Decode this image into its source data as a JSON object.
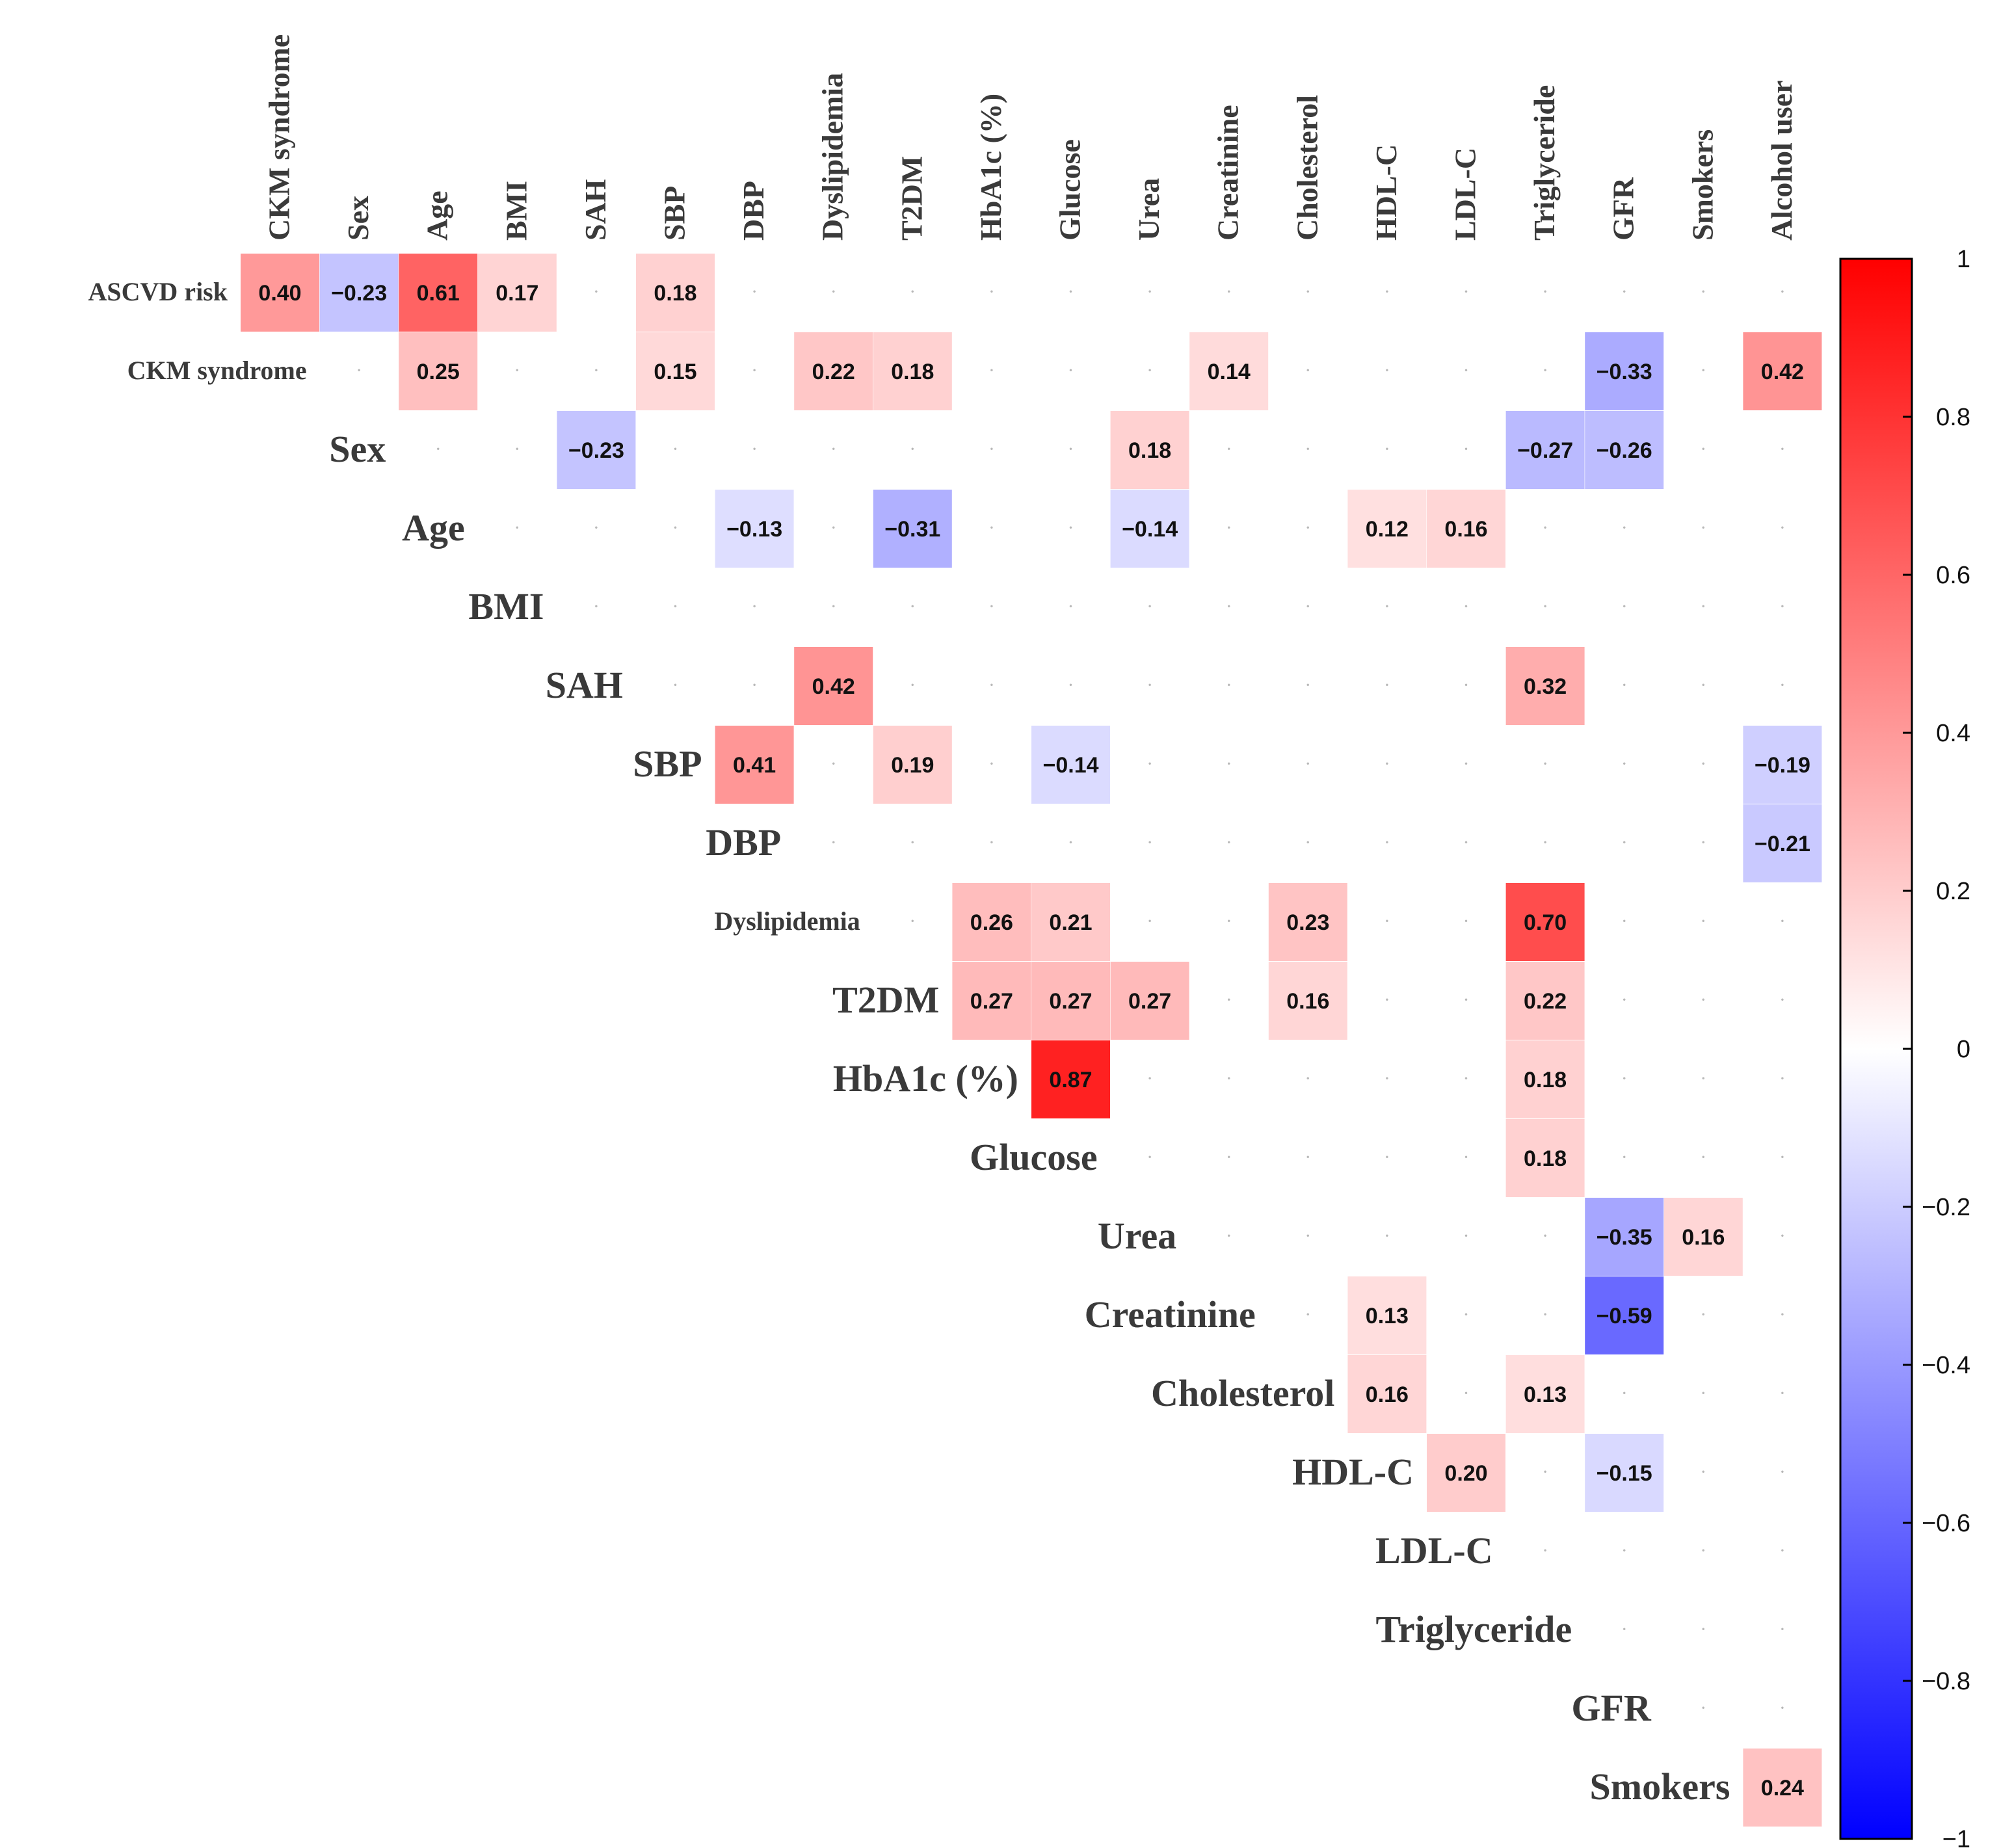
{
  "chart_data": {
    "type": "heatmap",
    "title": "",
    "columns": [
      "CKM syndrome",
      "Sex",
      "Age",
      "BMI",
      "SAH",
      "SBP",
      "DBP",
      "Dyslipidemia",
      "T2DM",
      "HbA1c (%)",
      "Glucose",
      "Urea",
      "Creatinine",
      "Cholesterol",
      "HDL-C",
      "LDL-C",
      "Triglyceride",
      "GFR",
      "Smokers",
      "Alcohol user"
    ],
    "rows": [
      "ASCVD risk",
      "CKM syndrome",
      "Sex",
      "Age",
      "BMI",
      "SAH",
      "SBP",
      "DBP",
      "Dyslipidemia",
      "T2DM",
      "HbA1c (%)",
      "Glucose",
      "Urea",
      "Creatinine",
      "Cholesterol",
      "HDL-C",
      "LDL-C",
      "Triglyceride",
      "GFR",
      "Smokers"
    ],
    "layout": "upper-triangle",
    "nonsignificant_marker": "·",
    "cells": [
      {
        "row": 0,
        "col": 0,
        "value": 0.4,
        "label": "0.40"
      },
      {
        "row": 0,
        "col": 1,
        "value": -0.23,
        "label": "−0.23"
      },
      {
        "row": 0,
        "col": 2,
        "value": 0.61,
        "label": "0.61"
      },
      {
        "row": 0,
        "col": 3,
        "value": 0.17,
        "label": "0.17"
      },
      {
        "row": 0,
        "col": 5,
        "value": 0.18,
        "label": "0.18"
      },
      {
        "row": 1,
        "col": 2,
        "value": 0.25,
        "label": "0.25"
      },
      {
        "row": 1,
        "col": 5,
        "value": 0.15,
        "label": "0.15"
      },
      {
        "row": 1,
        "col": 7,
        "value": 0.22,
        "label": "0.22"
      },
      {
        "row": 1,
        "col": 8,
        "value": 0.18,
        "label": "0.18"
      },
      {
        "row": 1,
        "col": 12,
        "value": 0.14,
        "label": "0.14"
      },
      {
        "row": 1,
        "col": 17,
        "value": -0.33,
        "label": "−0.33"
      },
      {
        "row": 1,
        "col": 19,
        "value": 0.42,
        "label": "0.42"
      },
      {
        "row": 2,
        "col": 4,
        "value": -0.23,
        "label": "−0.23"
      },
      {
        "row": 2,
        "col": 11,
        "value": 0.18,
        "label": "0.18"
      },
      {
        "row": 2,
        "col": 16,
        "value": -0.27,
        "label": "−0.27"
      },
      {
        "row": 2,
        "col": 17,
        "value": -0.26,
        "label": "−0.26"
      },
      {
        "row": 3,
        "col": 6,
        "value": -0.13,
        "label": "−0.13"
      },
      {
        "row": 3,
        "col": 8,
        "value": -0.31,
        "label": "−0.31"
      },
      {
        "row": 3,
        "col": 11,
        "value": -0.14,
        "label": "−0.14"
      },
      {
        "row": 3,
        "col": 14,
        "value": 0.12,
        "label": "0.12"
      },
      {
        "row": 3,
        "col": 15,
        "value": 0.16,
        "label": "0.16"
      },
      {
        "row": 5,
        "col": 7,
        "value": 0.42,
        "label": "0.42"
      },
      {
        "row": 5,
        "col": 16,
        "value": 0.32,
        "label": "0.32"
      },
      {
        "row": 6,
        "col": 6,
        "value": 0.41,
        "label": "0.41"
      },
      {
        "row": 6,
        "col": 8,
        "value": 0.19,
        "label": "0.19"
      },
      {
        "row": 6,
        "col": 10,
        "value": -0.14,
        "label": "−0.14"
      },
      {
        "row": 6,
        "col": 19,
        "value": -0.19,
        "label": "−0.19"
      },
      {
        "row": 7,
        "col": 19,
        "value": -0.21,
        "label": "−0.21"
      },
      {
        "row": 8,
        "col": 9,
        "value": 0.26,
        "label": "0.26"
      },
      {
        "row": 8,
        "col": 10,
        "value": 0.21,
        "label": "0.21"
      },
      {
        "row": 8,
        "col": 13,
        "value": 0.23,
        "label": "0.23"
      },
      {
        "row": 8,
        "col": 16,
        "value": 0.7,
        "label": "0.70"
      },
      {
        "row": 9,
        "col": 9,
        "value": 0.27,
        "label": "0.27"
      },
      {
        "row": 9,
        "col": 10,
        "value": 0.27,
        "label": "0.27"
      },
      {
        "row": 9,
        "col": 11,
        "value": 0.27,
        "label": "0.27"
      },
      {
        "row": 9,
        "col": 13,
        "value": 0.16,
        "label": "0.16"
      },
      {
        "row": 9,
        "col": 16,
        "value": 0.22,
        "label": "0.22"
      },
      {
        "row": 10,
        "col": 10,
        "value": 0.87,
        "label": "0.87"
      },
      {
        "row": 10,
        "col": 16,
        "value": 0.18,
        "label": "0.18"
      },
      {
        "row": 11,
        "col": 16,
        "value": 0.18,
        "label": "0.18"
      },
      {
        "row": 12,
        "col": 17,
        "value": -0.35,
        "label": "−0.35"
      },
      {
        "row": 12,
        "col": 18,
        "value": 0.16,
        "label": "0.16"
      },
      {
        "row": 13,
        "col": 14,
        "value": 0.13,
        "label": "0.13"
      },
      {
        "row": 13,
        "col": 17,
        "value": -0.59,
        "label": "−0.59"
      },
      {
        "row": 14,
        "col": 14,
        "value": 0.16,
        "label": "0.16"
      },
      {
        "row": 14,
        "col": 16,
        "value": 0.13,
        "label": "0.13"
      },
      {
        "row": 15,
        "col": 15,
        "value": 0.2,
        "label": "0.20"
      },
      {
        "row": 15,
        "col": 17,
        "value": -0.15,
        "label": "−0.15"
      },
      {
        "row": 19,
        "col": 19,
        "value": 0.24,
        "label": "0.24"
      }
    ],
    "colorbar": {
      "range": [
        -1,
        1
      ],
      "ticks": [
        1,
        0.8,
        0.6,
        0.4,
        0.2,
        0,
        -0.2,
        -0.4,
        -0.6,
        -0.8,
        -1
      ],
      "tick_labels": [
        "1",
        "0.8",
        "0.6",
        "0.4",
        "0.2",
        "0",
        "−0.2",
        "−0.4",
        "−0.6",
        "−0.8",
        "−1"
      ],
      "colors": {
        "low": "#0000ff",
        "mid": "#ffffff",
        "high": "#ff0000"
      }
    }
  }
}
